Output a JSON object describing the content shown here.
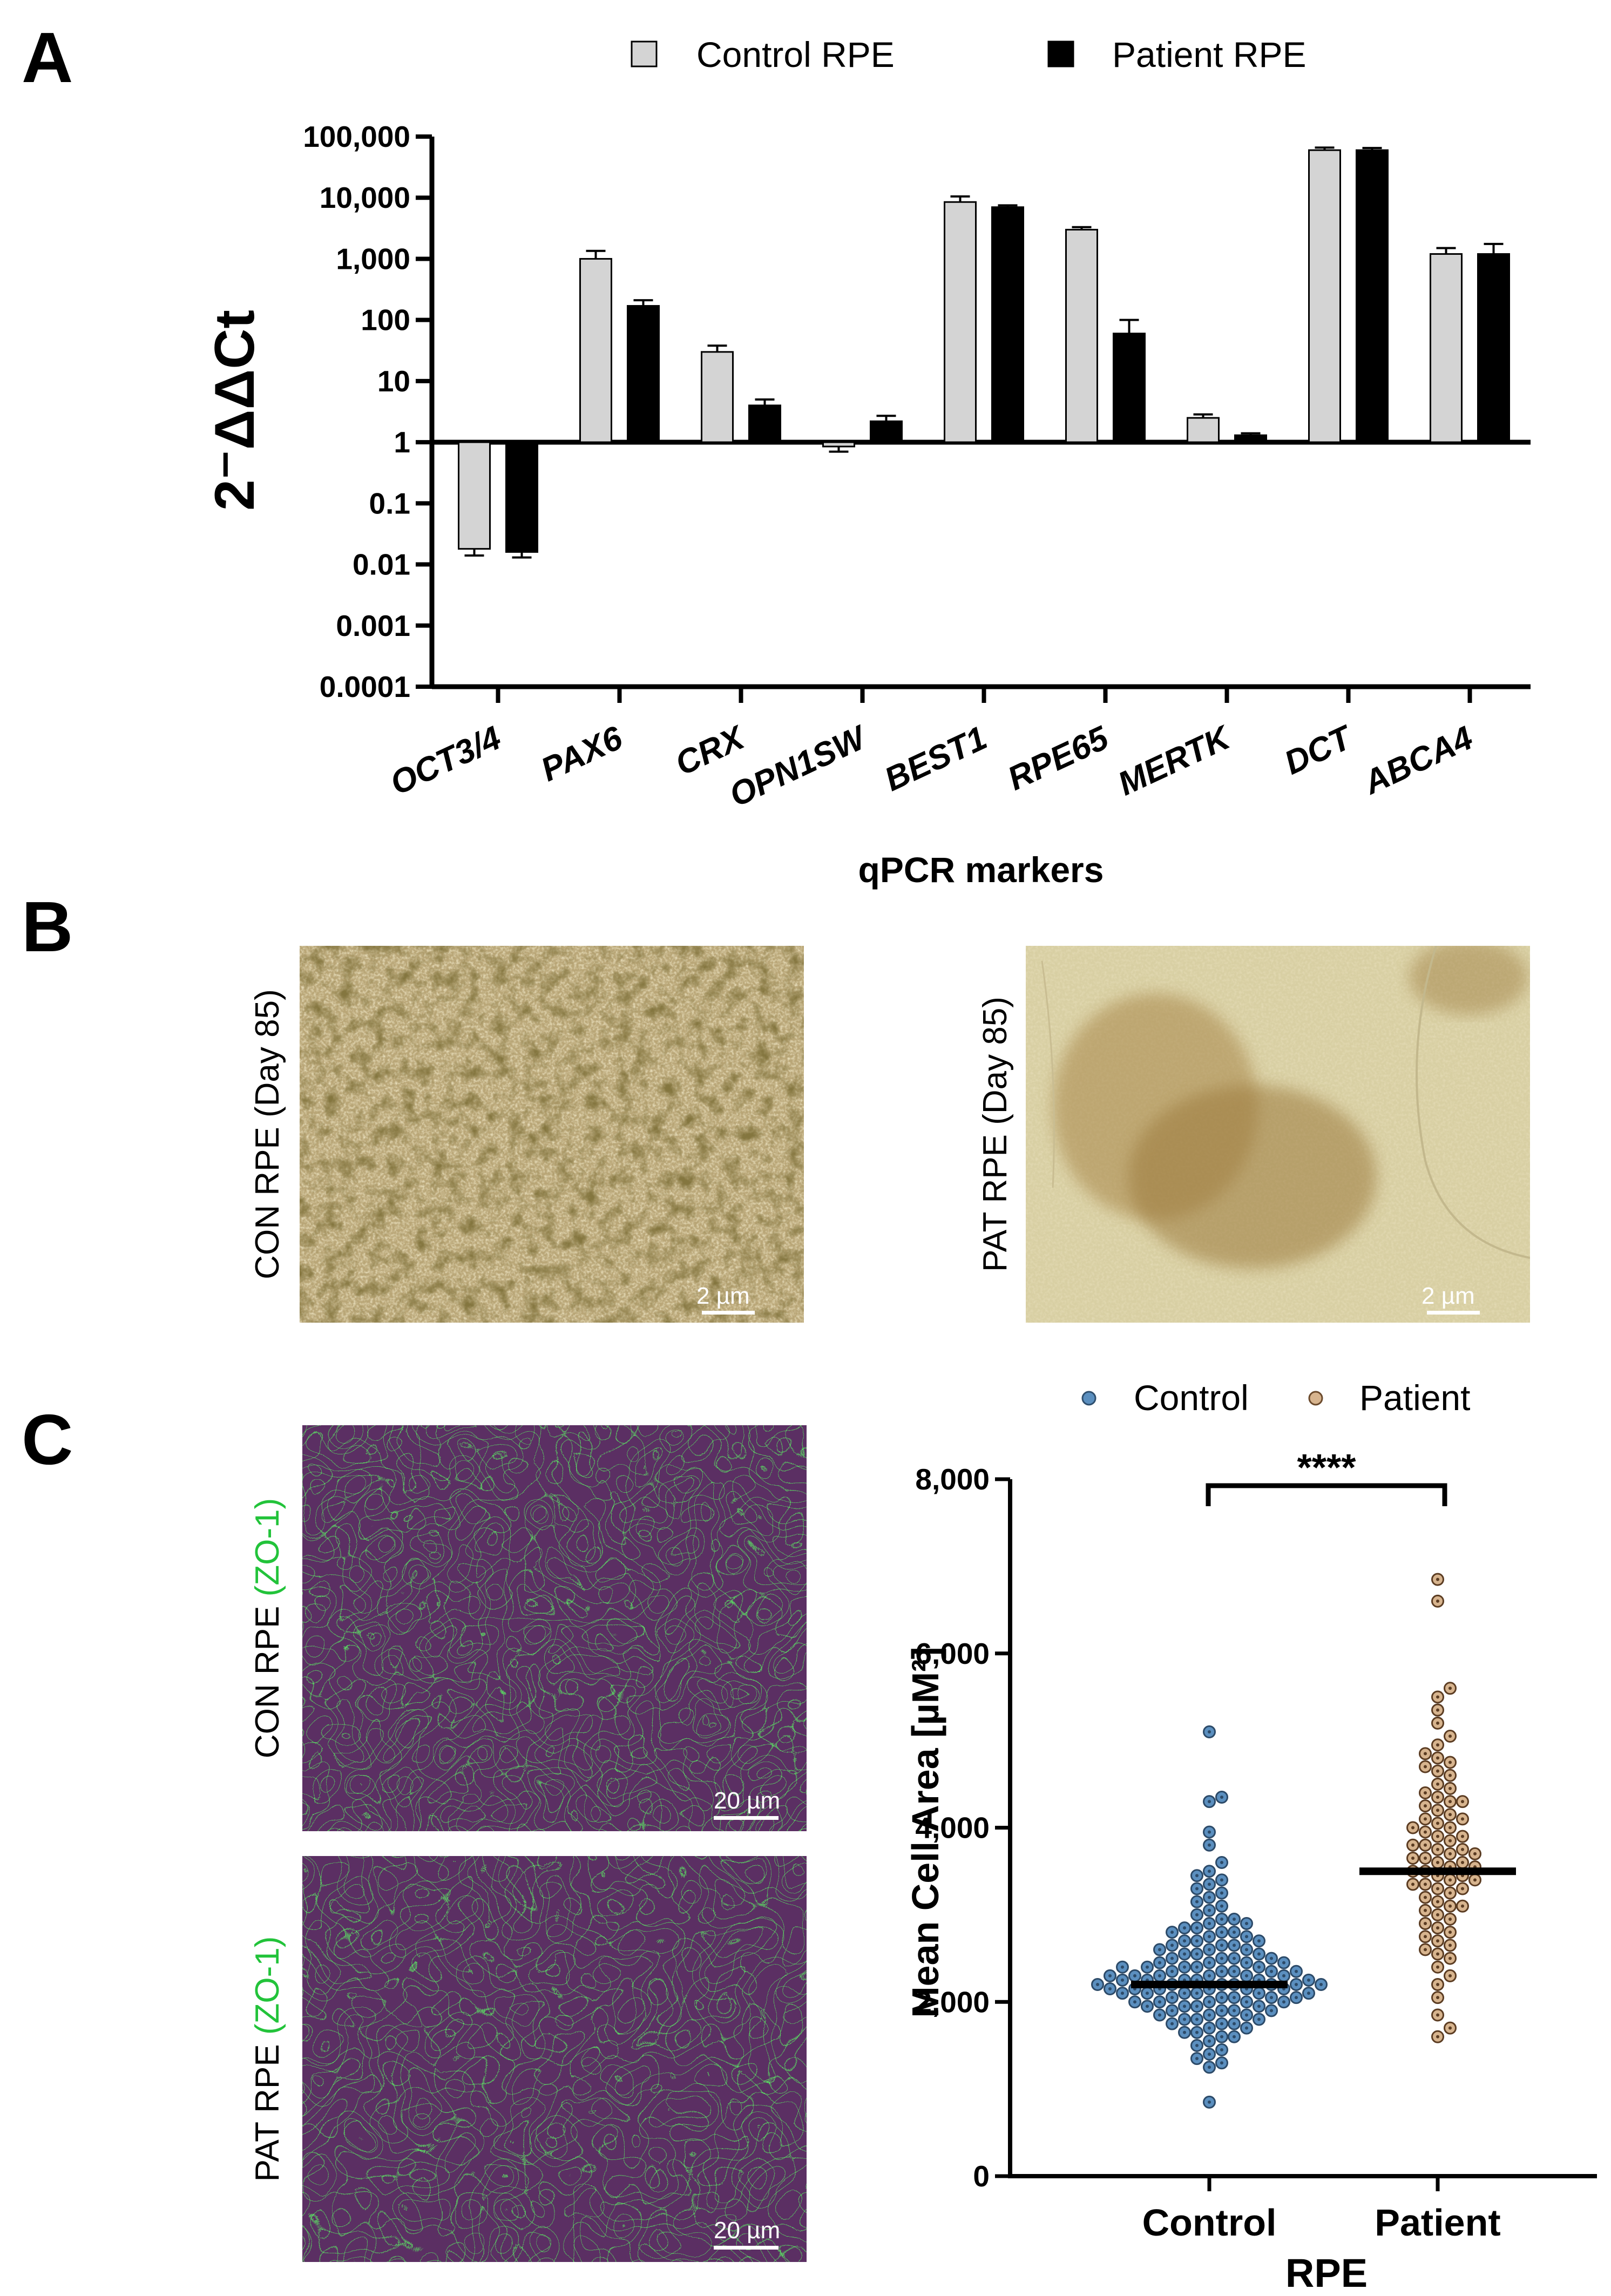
{
  "panels": {
    "a": "A",
    "b": "B",
    "c": "C"
  },
  "colors": {
    "control_bar": "#d4d4d4",
    "patient_bar": "#000000",
    "control_dot": "#5b8fbf",
    "patient_dot": "#d7b48e",
    "zo1_green": "#22c33a"
  },
  "chart_data": [
    {
      "type": "bar",
      "title": "",
      "xlabel": "qPCR markers",
      "ylabel": "2⁻ΔΔCt",
      "yscale": "log",
      "baseline": 1,
      "ylim": [
        0.0001,
        100000
      ],
      "ytick_labels": [
        "100,000",
        "10,000",
        "1,000",
        "100",
        "10",
        "1",
        "0.1",
        "0.01",
        "0.001",
        "0.0001"
      ],
      "ytick_values": [
        100000,
        10000,
        1000,
        100,
        10,
        1,
        0.1,
        0.01,
        0.001,
        0.0001
      ],
      "categories": [
        "OCT3/4",
        "PAX6",
        "CRX",
        "OPN1SW",
        "BEST1",
        "RPE65",
        "MERTK",
        "DCT",
        "ABCA4"
      ],
      "legend": {
        "placement": "top",
        "entries": [
          "Control RPE",
          "Patient RPE"
        ]
      },
      "series": [
        {
          "name": "Control RPE",
          "values": [
            0.018,
            1000,
            30,
            0.85,
            8500,
            3000,
            2.5,
            60000,
            1200
          ],
          "err_upper": [
            0.014,
            1350,
            38,
            0.7,
            10500,
            3300,
            2.85,
            66000,
            1500
          ]
        },
        {
          "name": "Patient RPE",
          "values": [
            0.016,
            170,
            4,
            2.2,
            7000,
            60,
            1.3,
            60000,
            1200
          ],
          "err_upper": [
            0.013,
            210,
            5,
            2.7,
            7500,
            100,
            1.4,
            65000,
            1750
          ]
        }
      ]
    },
    {
      "type": "scatter",
      "title": "",
      "xlabel": "RPE",
      "ylabel": "Mean Cell Area [µM²]",
      "ylim": [
        0,
        8000
      ],
      "ytick_labels": [
        "0",
        "2,000",
        "4,000",
        "6,000",
        "8,000"
      ],
      "ytick_values": [
        0,
        2000,
        4000,
        6000,
        8000
      ],
      "categories": [
        "Control",
        "Patient"
      ],
      "legend": {
        "placement": "top",
        "entries": [
          "Control",
          "Patient"
        ]
      },
      "significance": "****",
      "series": [
        {
          "name": "Control",
          "mean": 2200,
          "values": [
            5100,
            4350,
            4300,
            3950,
            3800,
            3600,
            3500,
            3450,
            3400,
            3350,
            3300,
            3250,
            3200,
            3150,
            3100,
            3050,
            3000,
            2950,
            2950,
            2900,
            2900,
            2850,
            2850,
            2800,
            2800,
            2800,
            2750,
            2750,
            2700,
            2700,
            2700,
            2650,
            2650,
            2650,
            2600,
            2600,
            2600,
            2550,
            2550,
            2550,
            2500,
            2500,
            2500,
            2500,
            2450,
            2450,
            2450,
            2450,
            2400,
            2400,
            2400,
            2400,
            2400,
            2350,
            2350,
            2350,
            2350,
            2350,
            2300,
            2300,
            2300,
            2300,
            2300,
            2300,
            2250,
            2250,
            2250,
            2250,
            2250,
            2250,
            2200,
            2200,
            2200,
            2200,
            2200,
            2200,
            2200,
            2150,
            2150,
            2150,
            2150,
            2150,
            2150,
            2100,
            2100,
            2100,
            2100,
            2100,
            2100,
            2050,
            2050,
            2050,
            2050,
            2050,
            2000,
            2000,
            2000,
            2000,
            2000,
            1950,
            1950,
            1950,
            1950,
            1900,
            1900,
            1900,
            1900,
            1850,
            1850,
            1850,
            1800,
            1800,
            1800,
            1750,
            1750,
            1750,
            1700,
            1700,
            1650,
            1650,
            1600,
            1600,
            1550,
            1500,
            1450,
            1400,
            1350,
            1300,
            1250,
            850
          ]
        },
        {
          "name": "Patient",
          "mean": 3500,
          "values": [
            6850,
            6600,
            5600,
            5500,
            5350,
            5200,
            5050,
            4950,
            4850,
            4800,
            4750,
            4700,
            4650,
            4600,
            4500,
            4450,
            4400,
            4350,
            4300,
            4300,
            4250,
            4200,
            4150,
            4100,
            4100,
            4050,
            4000,
            4000,
            3950,
            3900,
            3900,
            3850,
            3800,
            3800,
            3750,
            3750,
            3700,
            3700,
            3650,
            3650,
            3600,
            3600,
            3550,
            3550,
            3500,
            3500,
            3450,
            3450,
            3400,
            3400,
            3350,
            3350,
            3300,
            3300,
            3250,
            3200,
            3150,
            3100,
            3100,
            3050,
            3000,
            2950,
            2900,
            2850,
            2800,
            2750,
            2700,
            2650,
            2600,
            2550,
            2500,
            2400,
            2300,
            2200,
            2050,
            1850,
            1700,
            1600
          ]
        }
      ]
    }
  ],
  "panel_b": {
    "left_label": "CON RPE (Day 85)",
    "right_label": "PAT RPE (Day 85)",
    "scale_left": "2 µm",
    "scale_right": "2 µm"
  },
  "panel_c": {
    "top_label_prefix": "CON RPE ",
    "top_label_stain": "(ZO-1)",
    "bottom_label_prefix": "PAT RPE ",
    "bottom_label_stain": "(ZO-1)",
    "scale_top": "20 µm",
    "scale_bottom": "20 µm"
  }
}
